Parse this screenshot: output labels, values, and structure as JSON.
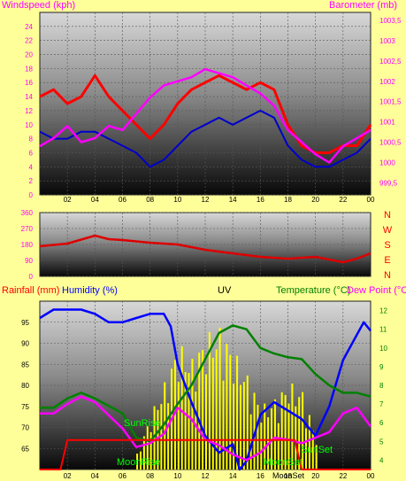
{
  "header": {
    "windspeed_label": "Windspeed (kph)",
    "title": "",
    "barometer_label": "Barometer (mb)"
  },
  "colors": {
    "background": "#FFFF99",
    "wind": "#FF0000",
    "gust_avg": "#0000CC",
    "baro": "#FF00FF",
    "direction": "#DD0000",
    "humidity": "#0000FF",
    "temperature": "#008000",
    "dewpoint": "#FF00FF",
    "rain": "#FF0000",
    "uv": "#FFFF00",
    "solar": "#000000"
  },
  "lower_labels": {
    "rainfall": "Rainfall (mm)",
    "humidity": "Humidity (%)",
    "uv": "UV",
    "temperature": "Temperature (°C)",
    "dewpoint": "Dew Point (°C",
    "sunrise": "SunRise",
    "sunset": "SunSet",
    "moonrise": "MoonRise",
    "moonset1": "MoonSet",
    "moonset2": "MoonSet"
  },
  "compass": [
    "N",
    "W",
    "S",
    "E",
    "N"
  ],
  "chart_data": [
    {
      "type": "line",
      "title": "",
      "xlabel": "",
      "x_ticks": [
        "02",
        "04",
        "06",
        "08",
        "10",
        "12",
        "14",
        "16",
        "18",
        "20",
        "22",
        "00"
      ],
      "y_left_label": "Windspeed (kph)",
      "y_left_ticks": [
        0,
        2,
        4,
        6,
        8,
        10,
        12,
        14,
        16,
        18,
        20,
        22,
        24
      ],
      "y_left_lim": [
        0,
        26
      ],
      "y_right_label": "Barometer (mb)",
      "y_right_ticks": [
        999.5,
        1000,
        1000.5,
        1001,
        1001.5,
        1002,
        1002.5,
        1003,
        1003.5
      ],
      "y_right_lim": [
        999.2,
        1003.7
      ],
      "series": [
        {
          "axis": "left",
          "x": [
            0,
            1,
            2,
            3,
            4,
            5,
            6,
            7,
            8,
            9,
            10,
            11,
            12,
            13,
            14,
            15,
            16,
            17,
            18,
            19,
            20,
            21,
            22,
            23,
            24
          ],
          "values": [
            14,
            15,
            13,
            14,
            17,
            14,
            12,
            10,
            8,
            10,
            13,
            15,
            16,
            17,
            16,
            15,
            16,
            15,
            10,
            7,
            6,
            6,
            7,
            7,
            10
          ]
        },
        {
          "axis": "left",
          "x": [
            0,
            1,
            2,
            3,
            4,
            5,
            6,
            7,
            8,
            9,
            10,
            11,
            12,
            13,
            14,
            15,
            16,
            17,
            18,
            19,
            20,
            21,
            22,
            23,
            24
          ],
          "values": [
            9,
            8,
            8,
            9,
            9,
            8,
            7,
            6,
            4,
            5,
            7,
            9,
            10,
            11,
            10,
            11,
            12,
            11,
            7,
            5,
            4,
            4,
            5,
            6,
            8
          ]
        },
        {
          "axis": "right",
          "x": [
            0,
            1,
            2,
            3,
            4,
            5,
            6,
            7,
            8,
            9,
            10,
            11,
            12,
            13,
            14,
            15,
            16,
            17,
            18,
            19,
            20,
            21,
            22,
            23,
            24
          ],
          "values": [
            1000.4,
            1000.6,
            1000.9,
            1000.5,
            1000.6,
            1000.9,
            1000.8,
            1001.2,
            1001.6,
            1001.9,
            1002.0,
            1002.1,
            1002.3,
            1002.2,
            1002.1,
            1001.9,
            1001.7,
            1001.4,
            1000.8,
            1000.5,
            1000.2,
            1000.0,
            1000.4,
            1000.6,
            1000.8
          ]
        }
      ]
    },
    {
      "type": "line",
      "title": "",
      "y_ticks": [
        0,
        90,
        180,
        270,
        360
      ],
      "y_lim": [
        0,
        360
      ],
      "series": [
        {
          "x": [
            0,
            2,
            4,
            5,
            6,
            8,
            10,
            12,
            14,
            16,
            18,
            20,
            22,
            23,
            24
          ],
          "values": [
            170,
            185,
            230,
            210,
            205,
            190,
            180,
            150,
            130,
            110,
            100,
            110,
            80,
            100,
            130
          ]
        }
      ]
    },
    {
      "type": "line",
      "title": "",
      "x_ticks": [
        "02",
        "04",
        "06",
        "08",
        "10",
        "12",
        "14",
        "16",
        "18",
        "20",
        "22",
        "00"
      ],
      "y_left_ticks": [
        65,
        70,
        75,
        80,
        85,
        90,
        95
      ],
      "y_left_lim": [
        60,
        100
      ],
      "y_right_ticks": [
        4,
        5,
        6,
        7,
        8,
        9,
        10,
        11,
        12
      ],
      "y_right_lim": [
        3.5,
        12.5
      ],
      "series": [
        {
          "axis": "left",
          "x": [
            0,
            1,
            2,
            3,
            4,
            5,
            6,
            7,
            8,
            9,
            9.5,
            10,
            11,
            12,
            13,
            14,
            14.5,
            15,
            16,
            17,
            18,
            19,
            20,
            21,
            22,
            23,
            23.5,
            24
          ],
          "values": [
            96,
            98,
            98,
            98,
            97,
            95,
            95,
            96,
            97,
            97,
            94,
            85,
            76,
            68,
            64,
            66,
            60,
            62,
            73,
            76,
            74,
            72,
            68,
            75,
            86,
            92,
            95,
            93
          ]
        },
        {
          "axis": "right",
          "x": [
            0,
            1,
            2,
            3,
            4,
            5,
            6,
            7,
            8,
            9,
            10,
            11,
            12,
            13,
            14,
            15,
            16,
            17,
            18,
            19,
            20,
            21,
            22,
            23,
            24
          ],
          "values": [
            6.8,
            6.8,
            7.3,
            7.6,
            7.3,
            6.9,
            6.5,
            5.2,
            5.0,
            5.9,
            7.0,
            8.0,
            9.4,
            10.8,
            11.2,
            11.0,
            10.0,
            9.7,
            9.5,
            9.4,
            8.6,
            8.0,
            7.6,
            7.6,
            7.4
          ]
        },
        {
          "axis": "right",
          "x": [
            0,
            1,
            2,
            3,
            4,
            5,
            6,
            7,
            8,
            9,
            10,
            11,
            12,
            13,
            14,
            15,
            16,
            17,
            18,
            19,
            20,
            21,
            22,
            23,
            24
          ],
          "values": [
            6.5,
            6.5,
            7.0,
            7.4,
            7.1,
            6.4,
            5.7,
            4.7,
            4.9,
            5.4,
            6.8,
            6.2,
            5.1,
            4.8,
            4.3,
            4.0,
            4.4,
            5.2,
            5.1,
            4.9,
            5.2,
            5.5,
            6.5,
            6.8,
            5.8
          ]
        },
        {
          "axis": "left",
          "x": [
            0,
            1.5,
            2,
            18.5,
            19,
            24
          ],
          "values": [
            60,
            60,
            67,
            67,
            60,
            60
          ]
        }
      ]
    }
  ]
}
